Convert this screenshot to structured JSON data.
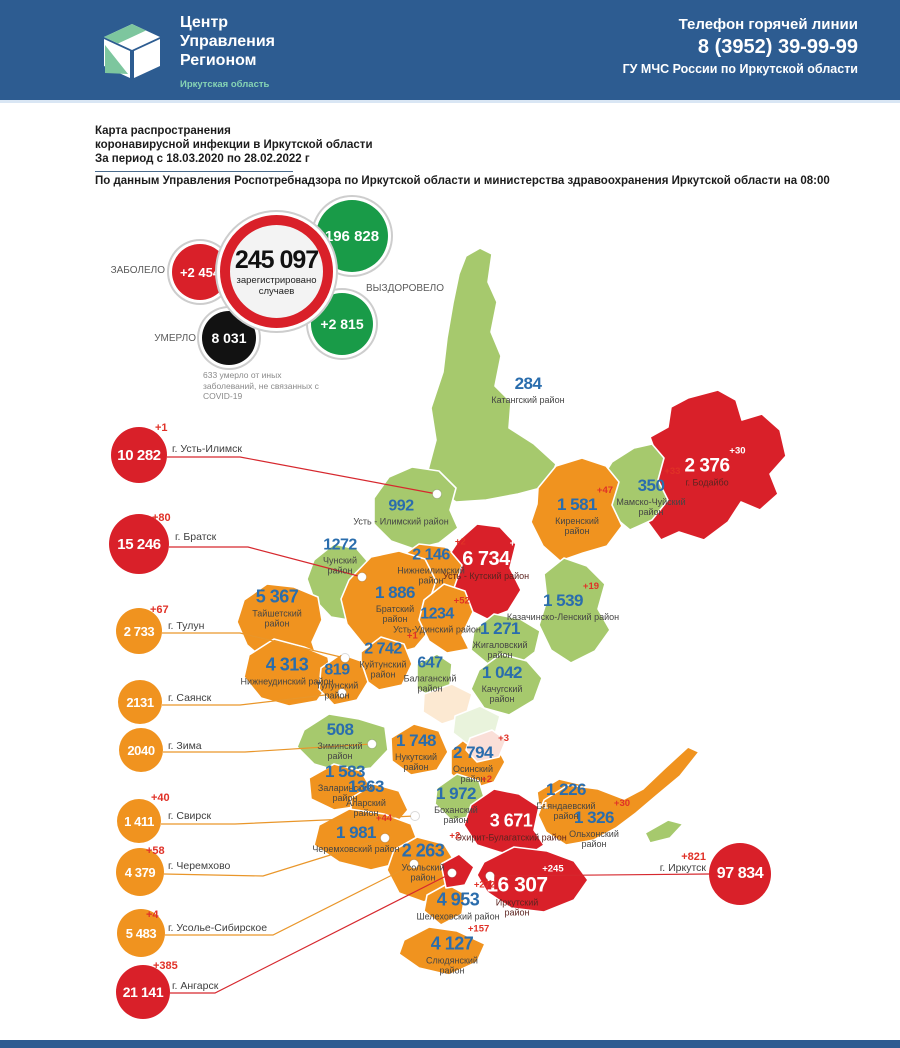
{
  "header": {
    "logo": {
      "title_lines": [
        "Центр",
        "Управления",
        "Регионом"
      ],
      "subtitle": "Иркутская область"
    },
    "hotline": {
      "label": "Телефон горячей линии",
      "phone": "8 (3952) 39-99-99",
      "org": "ГУ МЧС России по Иркутской области"
    }
  },
  "title": {
    "line1": "Карта распространения",
    "line2": "коронавирусной инфекции в Иркутской области",
    "line3": "За период с 18.03.2020 по 28.02.2022 г",
    "source": "По данным Управления Роспотребнадзора по Иркутской области и министерства здравоохранения Иркутской области на 08:00"
  },
  "stats": {
    "infected": {
      "label": "ЗАБОЛЕЛО",
      "delta": "+2 454"
    },
    "total": {
      "value": "245 097",
      "caption": "зарегистрировано случаев"
    },
    "recovered": {
      "label": "ВЫЗДОРОВЕЛО",
      "value": "196 828",
      "delta": "+2 815"
    },
    "died": {
      "label": "УМЕРЛО",
      "value": "8 031"
    },
    "footnote": "633 умерло от иных заболеваний, не связанных с COVID-19"
  },
  "colors": {
    "header_bg": "#2d5c91",
    "accent_teal": "#86d4b4",
    "red": "#d92029",
    "orange": "#f0931f",
    "light_green": "#a6c96d",
    "dark_green": "#199b48",
    "black": "#121212",
    "number_blue": "#2a6dad",
    "delta_red": "#e03127"
  },
  "map": {
    "districts": [
      {
        "id": "katangsky",
        "value": "284",
        "delta": null,
        "name": "Катангский район",
        "level": "green"
      },
      {
        "id": "bodaibinsky",
        "value": "2 376",
        "delta": "+30",
        "name": "г. Бодайбо",
        "level": "red"
      },
      {
        "id": "mamsko_chuisky",
        "value": "350",
        "delta": "+33",
        "name": "Мамско-Чуйский район",
        "level": "green"
      },
      {
        "id": "kirensky",
        "value": "1 581",
        "delta": "+47",
        "name": "Киренский район",
        "level": "orange"
      },
      {
        "id": "ust_ilimsky",
        "value": "992",
        "delta": null,
        "name": "Усть - Илимский район",
        "level": "green"
      },
      {
        "id": "nizhneilimsky",
        "value": "2 146",
        "delta": "+2",
        "name": "Нижнеилимский район",
        "level": "orange"
      },
      {
        "id": "ust_kutsky",
        "value": "6 734",
        "delta": "+58",
        "name": "Усть - Кутский район",
        "level": "red"
      },
      {
        "id": "kazachinsko_lensky",
        "value": "1 539",
        "delta": "+19",
        "name": "Казачинско-Ленский район",
        "level": "green"
      },
      {
        "id": "chunsky",
        "value": "1272",
        "delta": null,
        "name": "Чунский район",
        "level": "green"
      },
      {
        "id": "taishetsky",
        "value": "5 367",
        "delta": null,
        "name": "Тайшетский район",
        "level": "orange"
      },
      {
        "id": "bratsky",
        "value": "1 886",
        "delta": null,
        "name": "Братский район",
        "level": "orange"
      },
      {
        "id": "ust_udinsky",
        "value": "1234",
        "delta": "+52",
        "name": "Усть-Удинский район",
        "level": "orange"
      },
      {
        "id": "zhigalovsky",
        "value": "1 271",
        "delta": null,
        "name": "Жигаловский район",
        "level": "green"
      },
      {
        "id": "nizhneudinsky",
        "value": "4 313",
        "delta": null,
        "name": "Нижнеудинский район",
        "level": "orange"
      },
      {
        "id": "kuitunsky",
        "value": "2 742",
        "delta": "+1",
        "name": "Куйтунский район",
        "level": "orange"
      },
      {
        "id": "tulunsky",
        "value": "819",
        "delta": null,
        "name": "Тулунский район",
        "level": "orange"
      },
      {
        "id": "balagansky",
        "value": "647",
        "delta": null,
        "name": "Балаганский район",
        "level": "green"
      },
      {
        "id": "kachugsky",
        "value": "1 042",
        "delta": null,
        "name": "Качугский район",
        "level": "green"
      },
      {
        "id": "ziminsky",
        "value": "508",
        "delta": null,
        "name": "Зиминский район",
        "level": "green"
      },
      {
        "id": "nukutsky",
        "value": "1 748",
        "delta": null,
        "name": "Нукутский район",
        "level": "orange"
      },
      {
        "id": "osinsky",
        "value": "2 794",
        "delta": "+3",
        "name": "Осинский район",
        "level": "orange"
      },
      {
        "id": "zalarinsky",
        "value": "1 583",
        "delta": null,
        "name": "Заларинский район",
        "level": "orange"
      },
      {
        "id": "alarsky",
        "value": "1363",
        "delta": null,
        "name": "Аларский район",
        "level": "orange"
      },
      {
        "id": "bokhansky",
        "value": "1 972",
        "delta": "+2",
        "name": "Боханский район",
        "level": "green"
      },
      {
        "id": "bayandaevsky",
        "value": "1 226",
        "delta": null,
        "name": "Баяндаевский район",
        "level": "orange"
      },
      {
        "id": "olkhonsky",
        "value": "1 326",
        "delta": "+30",
        "name": "Ольхонский район",
        "level": "orange"
      },
      {
        "id": "ekhirit_bulagatsky",
        "value": "3 671",
        "delta": "+1",
        "name": "Эхирит-Булагатский район",
        "level": "red"
      },
      {
        "id": "cheremkhovsky",
        "value": "1 981",
        "delta": "+44",
        "name": "Черемховский район",
        "level": "orange"
      },
      {
        "id": "usolsky",
        "value": "2 263",
        "delta": "+2",
        "name": "Усольский район",
        "level": "orange"
      },
      {
        "id": "irkutsky",
        "value": "16 307",
        "delta": "+245",
        "name": "Иркутский район",
        "level": "red"
      },
      {
        "id": "shelekhovsky",
        "value": "4 953",
        "delta": "+272",
        "name": "Шелеховский район",
        "level": "orange"
      },
      {
        "id": "slyudyansky",
        "value": "4 127",
        "delta": "+157",
        "name": "Слюдянский район",
        "level": "orange"
      }
    ],
    "cities": [
      {
        "id": "ust_ilimsk",
        "value": "10 282",
        "delta": "+1",
        "label": "г. Усть-Илимск",
        "level": "red"
      },
      {
        "id": "bratsk",
        "value": "15 246",
        "delta": "+80",
        "label": "г. Братск",
        "level": "red"
      },
      {
        "id": "tulun",
        "value": "2 733",
        "delta": "+67",
        "label": "г. Тулун",
        "level": "orange"
      },
      {
        "id": "sayansk",
        "value": "2131",
        "delta": null,
        "label": "г. Саянск",
        "level": "orange"
      },
      {
        "id": "zima",
        "value": "2040",
        "delta": null,
        "label": "г. Зима",
        "level": "orange"
      },
      {
        "id": "svirsk",
        "value": "1 411",
        "delta": "+40",
        "label": "г. Свирск",
        "level": "orange"
      },
      {
        "id": "cheremkhovo",
        "value": "4 379",
        "delta": "+58",
        "label": "г. Черемхово",
        "level": "orange"
      },
      {
        "id": "usolye_sibirskoye",
        "value": "5 483",
        "delta": "+4",
        "label": "г. Усолье-Сибирское",
        "level": "orange"
      },
      {
        "id": "angarsk",
        "value": "21 141",
        "delta": "+385",
        "label": "г. Ангарск",
        "level": "red"
      },
      {
        "id": "irkutsk",
        "value": "97 834",
        "delta": "+821",
        "label": "г. Иркутск",
        "level": "red"
      }
    ]
  }
}
